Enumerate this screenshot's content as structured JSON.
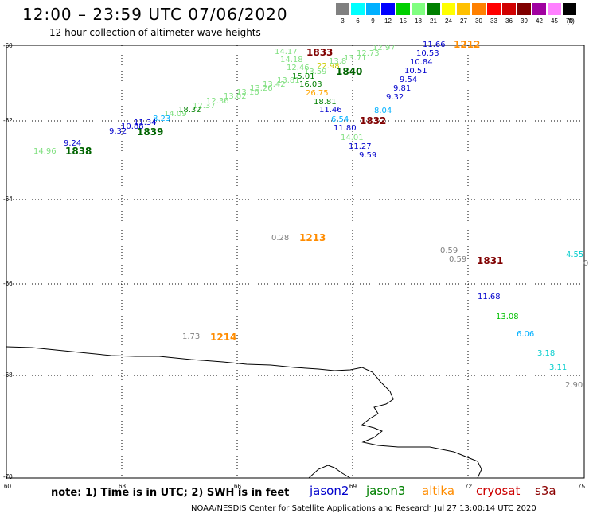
{
  "header": {
    "title": "12:00 – 23:59 UTC 07/06/2020",
    "subtitle": "12 hour collection of altimeter wave heights"
  },
  "scale": {
    "unit": "(ft)",
    "labels": [
      "3",
      "6",
      "9",
      "12",
      "15",
      "18",
      "21",
      "24",
      "27",
      "30",
      "33",
      "36",
      "39",
      "42",
      "45",
      "70"
    ],
    "colors": [
      "#808080",
      "#00ffff",
      "#00b0ff",
      "#0000ff",
      "#00d000",
      "#80ff80",
      "#008000",
      "#ffff00",
      "#ffc000",
      "#ff8000",
      "#ff0000",
      "#d00000",
      "#800000",
      "#a000a0",
      "#ff80ff",
      "#000000"
    ]
  },
  "axes": {
    "lat_labels": [
      "-60",
      "-62",
      "-64",
      "-66",
      "-68",
      "-70"
    ],
    "lon_labels": [
      "60",
      "63",
      "66",
      "69",
      "72",
      "75"
    ]
  },
  "satellites": {
    "jason2": {
      "name": "jason2",
      "color": "#0000cc"
    },
    "jason3": {
      "name": "jason3",
      "color": "#008000"
    },
    "altika": {
      "name": "altika",
      "color": "#ff8c00"
    },
    "cryosat": {
      "name": "cryosat",
      "color": "#cc0000"
    },
    "s3a": {
      "name": "s3a",
      "color": "#8b0000"
    }
  },
  "passes": [
    {
      "label": "1833",
      "color": "#800000"
    },
    {
      "label": "1840",
      "color": "#006400"
    },
    {
      "label": "1212",
      "color": "#ff8c00"
    },
    {
      "label": "1832",
      "color": "#800000"
    },
    {
      "label": "1839",
      "color": "#006400"
    },
    {
      "label": "1838",
      "color": "#006400"
    },
    {
      "label": "1213",
      "color": "#ff8c00"
    },
    {
      "label": "1831",
      "color": "#800000"
    },
    {
      "label": "1214",
      "color": "#ff8c00"
    }
  ],
  "wave_heights": [
    {
      "value": "14.17",
      "color": "#80e080"
    },
    {
      "value": "14.18",
      "color": "#80e080"
    },
    {
      "value": "12.46",
      "color": "#80e080"
    },
    {
      "value": "22.98",
      "color": "#cccc00"
    },
    {
      "value": "13.59",
      "color": "#80e080"
    },
    {
      "value": "13.71",
      "color": "#80e080"
    },
    {
      "value": "12.73",
      "color": "#80e080"
    },
    {
      "value": "12.97",
      "color": "#80e080"
    },
    {
      "value": "13.8",
      "color": "#80e080"
    },
    {
      "value": "15.01",
      "color": "#008000"
    },
    {
      "value": "16.03",
      "color": "#008000"
    },
    {
      "value": "26.75",
      "color": "#ffa500"
    },
    {
      "value": "18.81",
      "color": "#008000"
    },
    {
      "value": "13.81",
      "color": "#80e080"
    },
    {
      "value": "13.42",
      "color": "#80e080"
    },
    {
      "value": "13.26",
      "color": "#80e080"
    },
    {
      "value": "13.16",
      "color": "#80e080"
    },
    {
      "value": "13.02",
      "color": "#80e080"
    },
    {
      "value": "12.36",
      "color": "#80e080"
    },
    {
      "value": "12.37",
      "color": "#80e080"
    },
    {
      "value": "18.32",
      "color": "#008000"
    },
    {
      "value": "14.09",
      "color": "#80e080"
    },
    {
      "value": "8.23",
      "color": "#00b0ff"
    },
    {
      "value": "11.34",
      "color": "#0000cc"
    },
    {
      "value": "10.88",
      "color": "#0000cc"
    },
    {
      "value": "9.32",
      "color": "#0000cc"
    },
    {
      "value": "9.24",
      "color": "#0000cc"
    },
    {
      "value": "14.96",
      "color": "#80e080"
    },
    {
      "value": "11.66",
      "color": "#0000cc"
    },
    {
      "value": "10.53",
      "color": "#0000cc"
    },
    {
      "value": "10.84",
      "color": "#0000cc"
    },
    {
      "value": "10.51",
      "color": "#0000cc"
    },
    {
      "value": "9.54",
      "color": "#0000cc"
    },
    {
      "value": "9.81",
      "color": "#0000cc"
    },
    {
      "value": "9.32",
      "color": "#0000cc"
    },
    {
      "value": "8.04",
      "color": "#00b0ff"
    },
    {
      "value": "11.46",
      "color": "#0000cc"
    },
    {
      "value": "6.54",
      "color": "#00b0ff"
    },
    {
      "value": "11.80",
      "color": "#0000cc"
    },
    {
      "value": "14.01",
      "color": "#80e080"
    },
    {
      "value": "11.27",
      "color": "#0000cc"
    },
    {
      "value": "9.59",
      "color": "#0000cc"
    },
    {
      "value": "0.28",
      "color": "#808080"
    },
    {
      "value": "0.59",
      "color": "#808080"
    },
    {
      "value": "0.59",
      "color": "#808080"
    },
    {
      "value": "4.55",
      "color": "#00cccc"
    },
    {
      "value": "0",
      "color": "#808080"
    },
    {
      "value": "11.68",
      "color": "#0000cc"
    },
    {
      "value": "13.08",
      "color": "#00c000"
    },
    {
      "value": "6.06",
      "color": "#00b0ff"
    },
    {
      "value": "3.18",
      "color": "#00cccc"
    },
    {
      "value": "3.11",
      "color": "#00cccc"
    },
    {
      "value": "2.90",
      "color": "#808080"
    },
    {
      "value": "1.73",
      "color": "#808080"
    }
  ],
  "footer": {
    "note": "note: 1) Time is in UTC; 2) SWH is in feet",
    "credit": "NOAA/NESDIS Center for Satellite Applications and Research    Jul 27 13:00:14 UTC 2020"
  }
}
